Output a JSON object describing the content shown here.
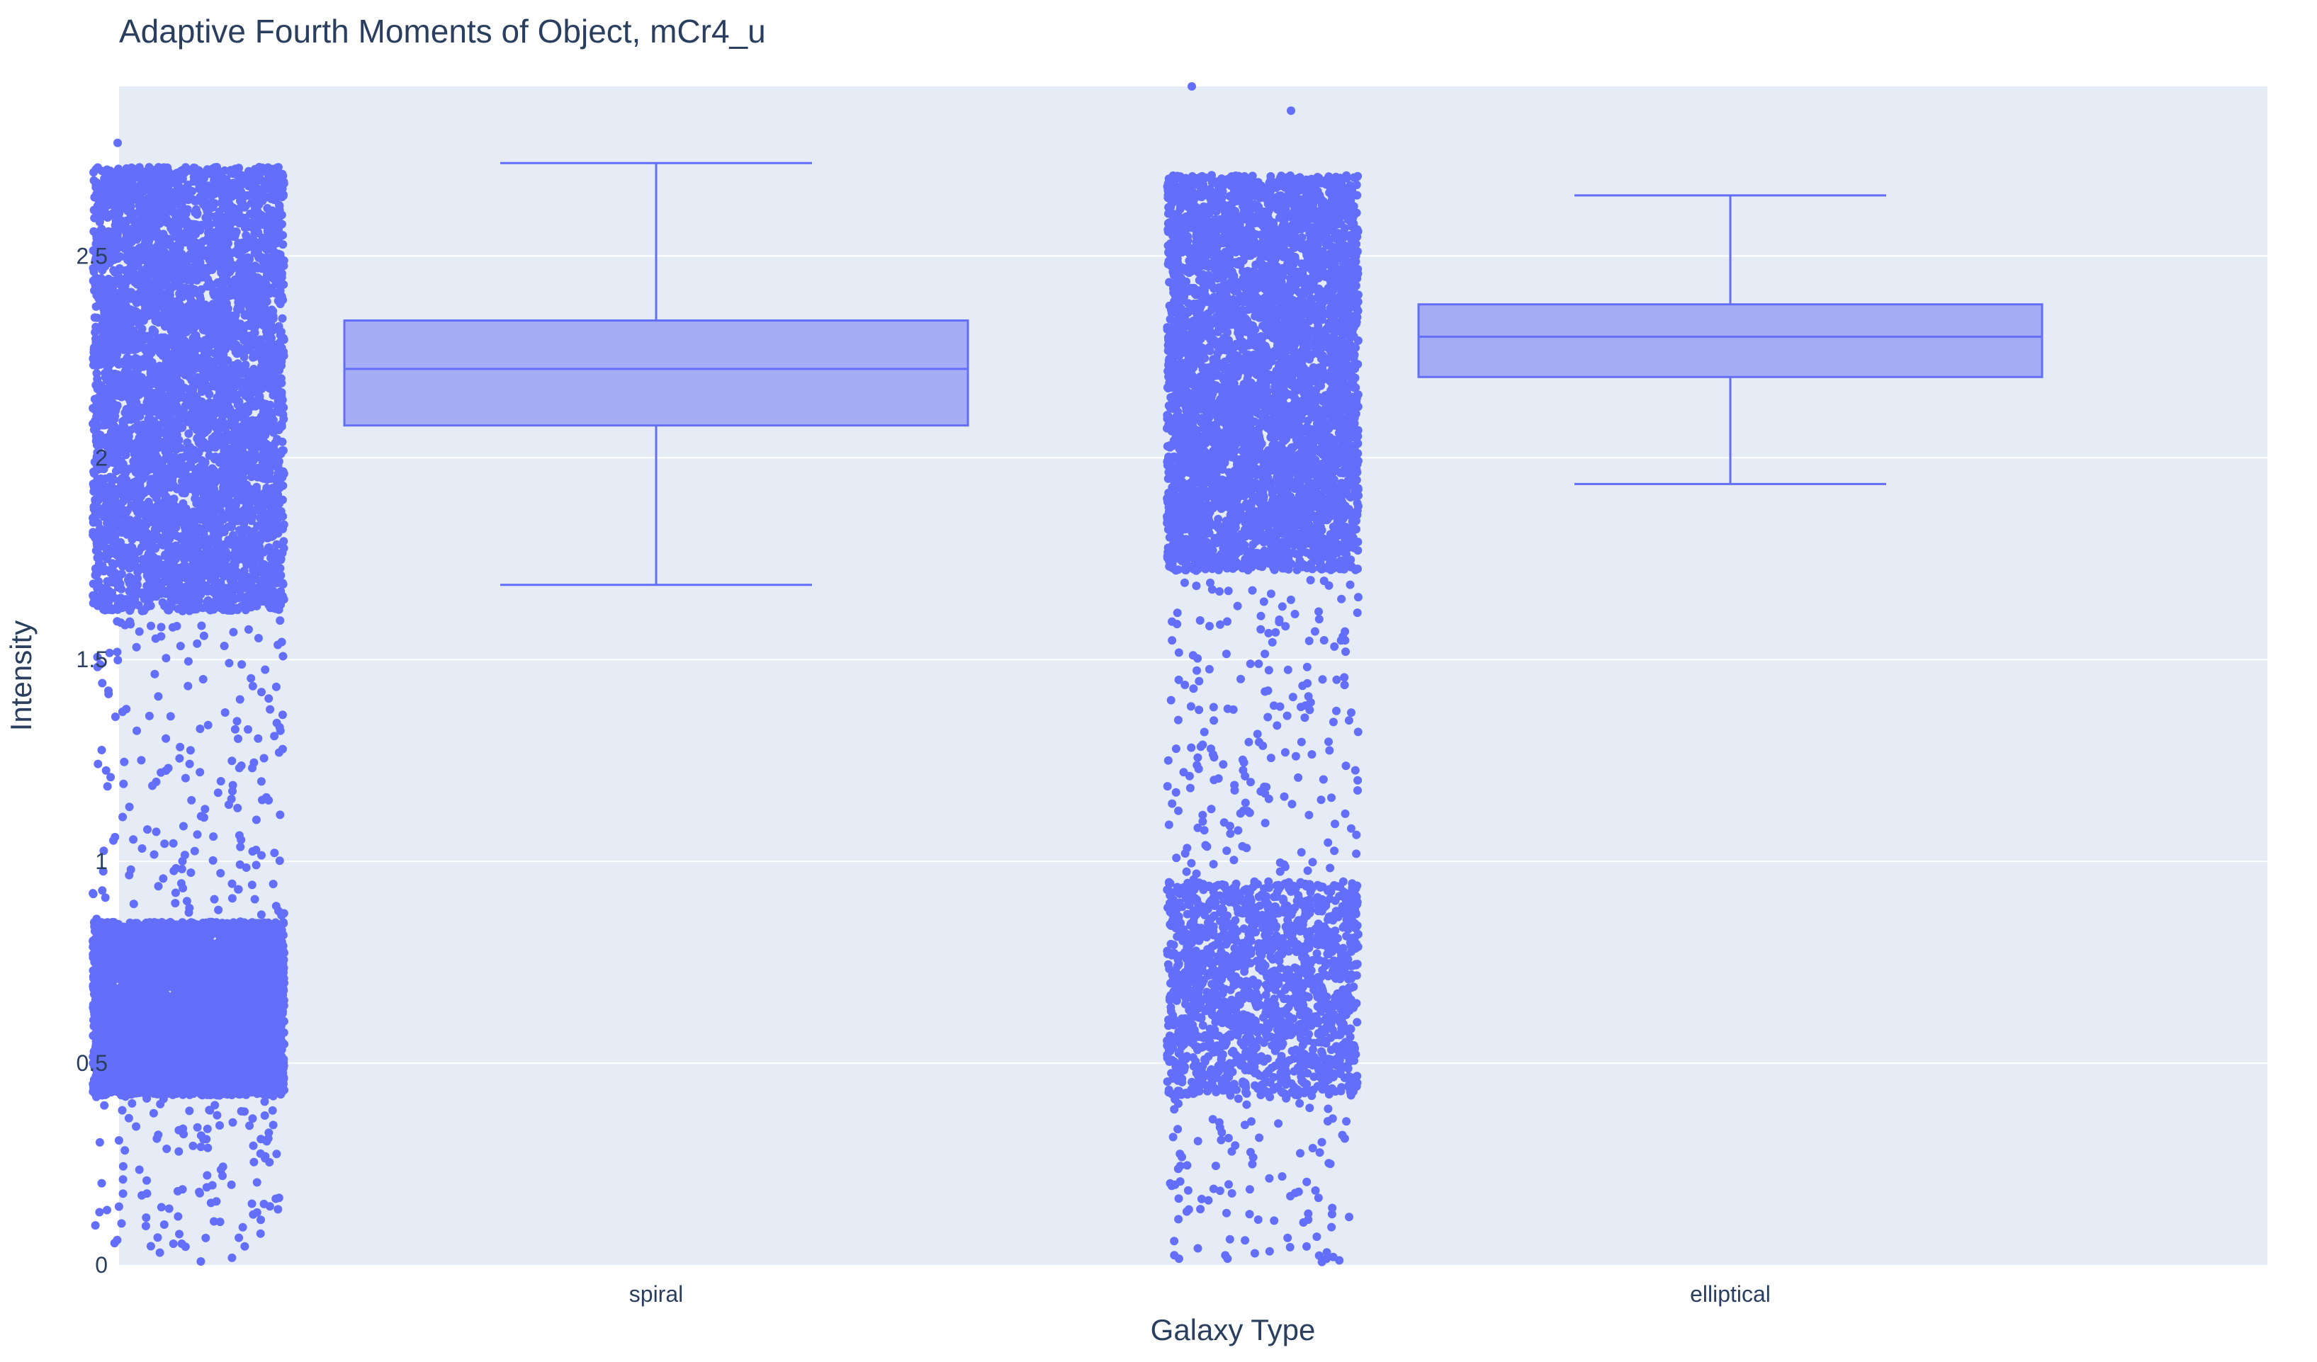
{
  "chart_data": {
    "type": "box",
    "title": "Adaptive Fourth Moments of Object, mCr4_u",
    "xlabel": "Galaxy Type",
    "ylabel": "Intensity",
    "categories": [
      "spiral",
      "elliptical"
    ],
    "ylim": [
      0,
      2.92
    ],
    "yticks": [
      0,
      0.5,
      1,
      1.5,
      2,
      2.5
    ],
    "ytick_labels": [
      "0",
      "0.5",
      "1",
      "1.5",
      "2",
      "2.5"
    ],
    "grid": true,
    "points": "all",
    "series": [
      {
        "category": "spiral",
        "box": {
          "lowerfence": 1.685,
          "q1": 2.08,
          "median": 2.22,
          "q3": 2.34,
          "upperfence": 2.73
        },
        "clusters": [
          {
            "low": 1.62,
            "high": 2.72,
            "density": "dense"
          },
          {
            "low": 0.42,
            "high": 0.85,
            "density": "dense"
          },
          {
            "low": 0.0,
            "high": 1.6,
            "density": "sparse"
          }
        ],
        "max_outlier": 2.78
      },
      {
        "category": "elliptical",
        "box": {
          "lowerfence": 1.935,
          "q1": 2.2,
          "median": 2.3,
          "q3": 2.38,
          "upperfence": 2.65
        },
        "clusters": [
          {
            "low": 1.72,
            "high": 2.7,
            "density": "dense"
          },
          {
            "low": 0.42,
            "high": 0.95,
            "density": "medium"
          },
          {
            "low": 0.0,
            "high": 1.7,
            "density": "sparse"
          }
        ],
        "max_outlier": 2.92
      }
    ],
    "colors": {
      "marker": "#636efa",
      "box_fill": "#a5adf5",
      "box_line": "#636efa",
      "plot_bg": "#e5ecf6",
      "grid": "#ffffff",
      "text": "#2a3f5f"
    }
  }
}
